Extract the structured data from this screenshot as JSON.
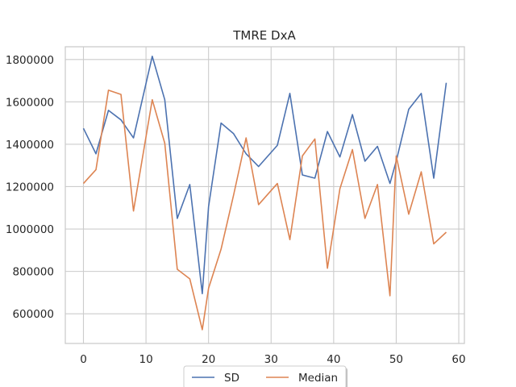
{
  "chart_data": {
    "type": "line",
    "title": "TMRE DxA",
    "xlabel": "",
    "ylabel": "",
    "xlim": [
      -2.9,
      60.9
    ],
    "ylim": [
      460000,
      1860000
    ],
    "xticks": [
      0,
      10,
      20,
      30,
      40,
      50,
      60
    ],
    "yticks": [
      600000,
      800000,
      1000000,
      1200000,
      1400000,
      1600000,
      1800000
    ],
    "grid": true,
    "legend": "bottom-center",
    "series": [
      {
        "name": "SD",
        "color": "#4c72b0",
        "x": [
          0,
          2,
          4,
          6,
          8,
          11,
          13,
          15,
          17,
          19,
          20,
          22,
          24,
          26,
          28,
          31,
          33,
          35,
          37,
          39,
          41,
          43,
          45,
          47,
          49,
          50,
          52,
          54,
          56,
          58
        ],
        "y": [
          1475000,
          1355000,
          1560000,
          1515000,
          1430000,
          1815000,
          1610000,
          1050000,
          1210000,
          695000,
          1105000,
          1500000,
          1450000,
          1355000,
          1295000,
          1395000,
          1640000,
          1255000,
          1240000,
          1460000,
          1340000,
          1540000,
          1320000,
          1390000,
          1215000,
          1320000,
          1565000,
          1640000,
          1240000,
          1690000
        ]
      },
      {
        "name": "Median",
        "color": "#dd8452",
        "x": [
          0,
          2,
          4,
          6,
          8,
          11,
          13,
          15,
          17,
          19,
          20,
          22,
          24,
          26,
          28,
          31,
          33,
          35,
          37,
          39,
          41,
          43,
          45,
          47,
          49,
          50,
          52,
          54,
          56,
          58
        ],
        "y": [
          1215000,
          1280000,
          1655000,
          1635000,
          1085000,
          1610000,
          1405000,
          810000,
          765000,
          525000,
          720000,
          905000,
          1160000,
          1430000,
          1115000,
          1215000,
          950000,
          1345000,
          1425000,
          815000,
          1190000,
          1375000,
          1050000,
          1210000,
          685000,
          1345000,
          1070000,
          1270000,
          930000,
          985000
        ]
      }
    ]
  }
}
